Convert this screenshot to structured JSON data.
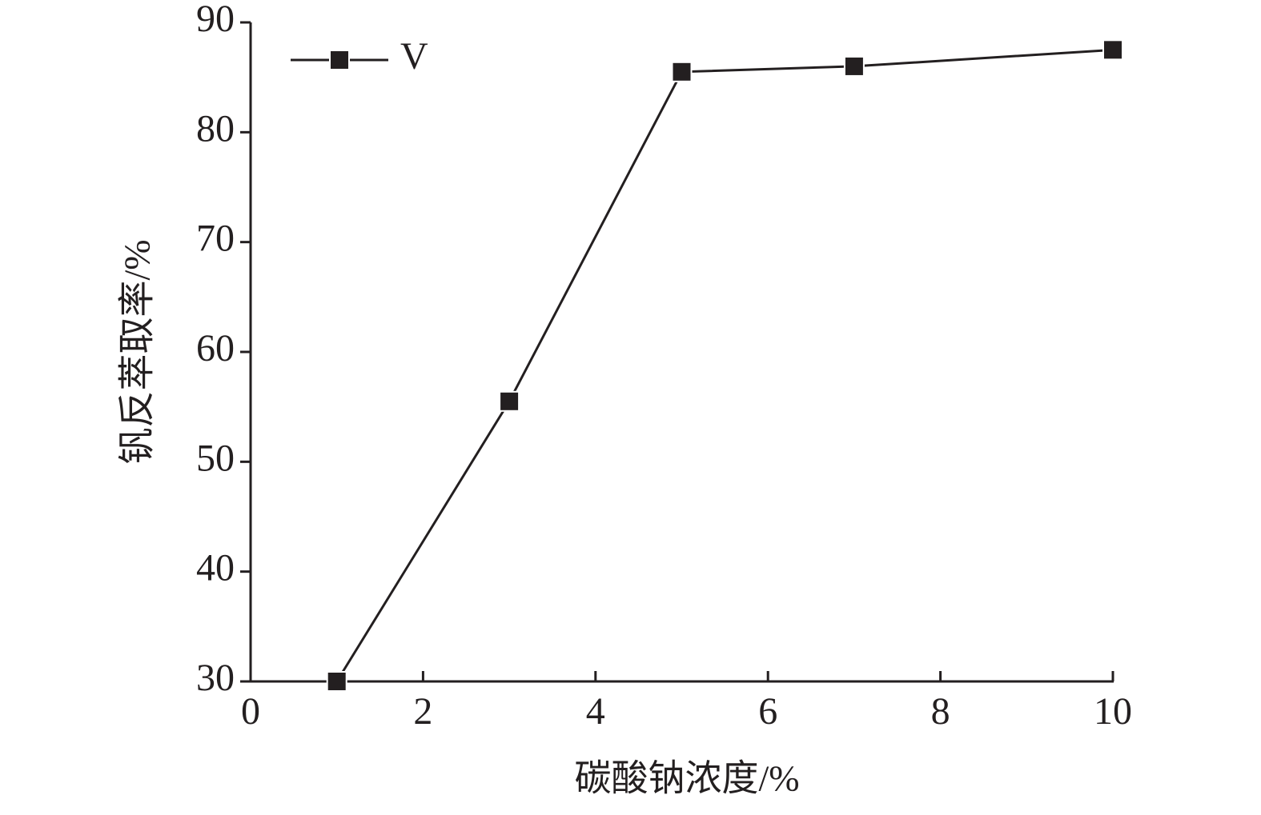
{
  "chart_data": {
    "type": "line",
    "x_label": "碳酸钠浓度/%",
    "y_label": "钒反萃取率/%",
    "x": [
      1,
      3,
      5,
      7,
      10
    ],
    "series": [
      {
        "name": "V",
        "color": "#231f20",
        "values": [
          30,
          55.5,
          85.5,
          86,
          87.5
        ]
      }
    ],
    "xlim": [
      0,
      10
    ],
    "xticks": [
      0,
      2,
      4,
      6,
      8,
      10
    ],
    "ylim": [
      30,
      90
    ],
    "yticks": [
      30,
      40,
      50,
      60,
      70,
      80,
      90
    ],
    "grid": false,
    "legend": "upper-left",
    "marker": "square"
  }
}
